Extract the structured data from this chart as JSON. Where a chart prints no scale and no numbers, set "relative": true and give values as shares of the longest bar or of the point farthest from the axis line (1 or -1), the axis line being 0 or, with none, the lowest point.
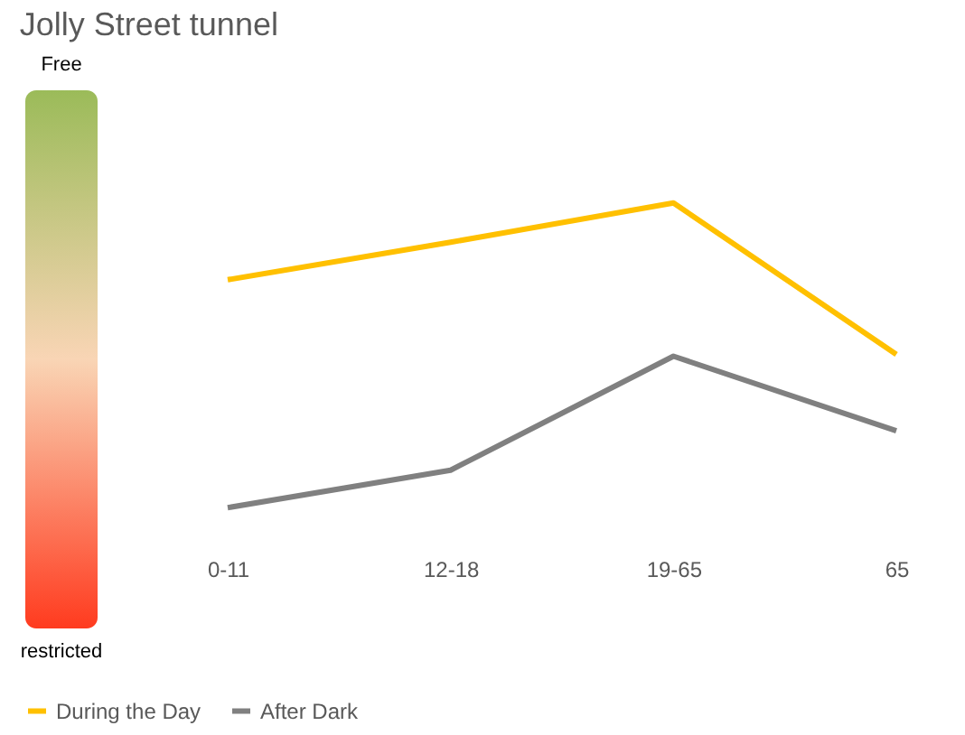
{
  "chart_data": {
    "type": "line",
    "title": "Jolly Street tunnel",
    "relative": true,
    "categories": [
      "0-11",
      "12-18",
      "19-65",
      "65"
    ],
    "series": [
      {
        "name": "During the Day",
        "color": "#ffc000",
        "values": [
          0.748,
          0.871,
          1,
          0.503
        ]
      },
      {
        "name": "After Dark",
        "color": "#808080",
        "values": [
          0,
          0.123,
          0.497,
          0.252
        ]
      }
    ],
    "annotations": [
      "Free",
      "restricted"
    ],
    "grid": false,
    "legend": "bottom",
    "marker": "none"
  }
}
